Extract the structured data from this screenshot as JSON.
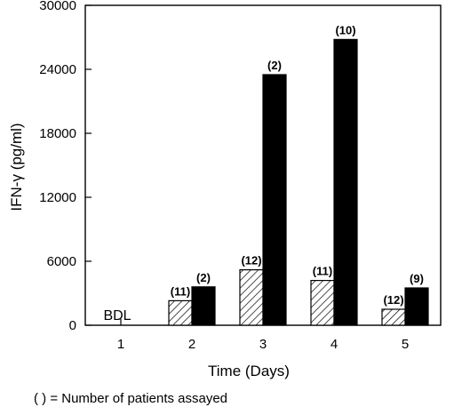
{
  "chart_data": {
    "type": "bar",
    "xlabel": "Time (Days)",
    "ylabel": "IFN-γ (pg/ml)",
    "ylim": [
      0,
      30000
    ],
    "yticks": [
      0,
      6000,
      12000,
      18000,
      24000,
      30000
    ],
    "categories": [
      "1",
      "2",
      "3",
      "4",
      "5"
    ],
    "series": [
      {
        "fill": "hatched",
        "values": [
          0,
          2300,
          5200,
          4200,
          1500
        ],
        "labels": [
          "",
          "(11)",
          "(12)",
          "(11)",
          "(12)"
        ]
      },
      {
        "fill": "solid",
        "values": [
          0,
          3600,
          23500,
          26800,
          3500
        ],
        "labels": [
          "",
          "(2)",
          "(2)",
          "(10)",
          "(9)"
        ]
      }
    ],
    "annotations": [
      {
        "category": "1",
        "text": "BDL"
      }
    ],
    "footnote": "( ) = Number of patients assayed"
  }
}
